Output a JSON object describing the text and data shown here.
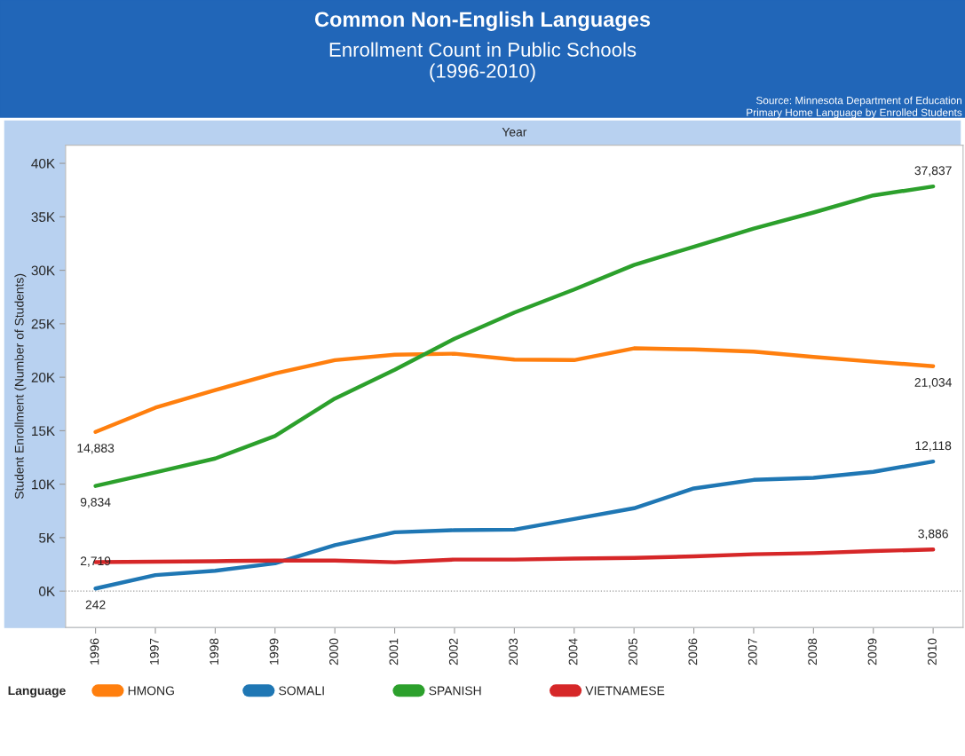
{
  "chart_data": {
    "type": "line",
    "title": "Common Non-English Languages",
    "subtitle": "Enrollment Count in Public Schools\n(1996-2010)",
    "annotations": [
      "Source: Minnesota Department of Education",
      "Primary Home Language by Enrolled Students"
    ],
    "xlabel": "Year",
    "ylabel": "Student Enrollment (Number of Students)",
    "legend_title": "Language",
    "categories": [
      "1996",
      "1997",
      "1998",
      "1999",
      "2000",
      "2001",
      "2002",
      "2003",
      "2004",
      "2005",
      "2006",
      "2007",
      "2008",
      "2009",
      "2010"
    ],
    "series": [
      {
        "name": "HMONG",
        "color": "#ff7f0e",
        "values": [
          14883,
          17150,
          18800,
          20350,
          21600,
          22100,
          22200,
          21650,
          21600,
          22700,
          22600,
          22400,
          21900,
          21450,
          21034
        ],
        "value_labels": [
          "14,883",
          null,
          null,
          null,
          null,
          null,
          null,
          null,
          null,
          null,
          null,
          null,
          null,
          null,
          "21,034"
        ]
      },
      {
        "name": "SOMALI",
        "color": "#1f77b4",
        "values": [
          242,
          1500,
          1900,
          2600,
          4300,
          5500,
          5700,
          5750,
          6750,
          7750,
          9600,
          10400,
          10600,
          11150,
          12118
        ],
        "value_labels": [
          "242",
          null,
          null,
          null,
          null,
          null,
          null,
          null,
          null,
          null,
          null,
          null,
          null,
          null,
          "12,118"
        ]
      },
      {
        "name": "SPANISH",
        "color": "#2ca02c",
        "values": [
          9834,
          11100,
          12400,
          14500,
          18000,
          20700,
          23600,
          26050,
          28200,
          30500,
          32200,
          33900,
          35400,
          37000,
          37837
        ],
        "value_labels": [
          "9,834",
          null,
          null,
          null,
          null,
          null,
          null,
          null,
          null,
          null,
          null,
          null,
          null,
          null,
          "37,837"
        ]
      },
      {
        "name": "VIETNAMESE",
        "color": "#d62728",
        "values": [
          2719,
          2750,
          2800,
          2850,
          2850,
          2700,
          2950,
          2950,
          3050,
          3100,
          3250,
          3450,
          3550,
          3750,
          3886
        ],
        "value_labels": [
          "2,719",
          null,
          null,
          null,
          null,
          null,
          null,
          null,
          null,
          null,
          null,
          null,
          null,
          null,
          "3,886"
        ]
      }
    ],
    "ylim": [
      -3400,
      41700
    ],
    "yticks": [
      {
        "value": 0,
        "label": "0K"
      },
      {
        "value": 5000,
        "label": "5K"
      },
      {
        "value": 10000,
        "label": "10K"
      },
      {
        "value": 15000,
        "label": "15K"
      },
      {
        "value": 20000,
        "label": "20K"
      },
      {
        "value": 25000,
        "label": "25K"
      },
      {
        "value": 30000,
        "label": "30K"
      },
      {
        "value": 35000,
        "label": "35K"
      },
      {
        "value": 40000,
        "label": "40K"
      }
    ],
    "ref_lines": [
      {
        "axis": "y",
        "value": 0,
        "color": "#999999",
        "line_style": "dotted"
      }
    ],
    "grid": false,
    "legend": "bottom",
    "marker": "none",
    "line_style": "solid"
  }
}
